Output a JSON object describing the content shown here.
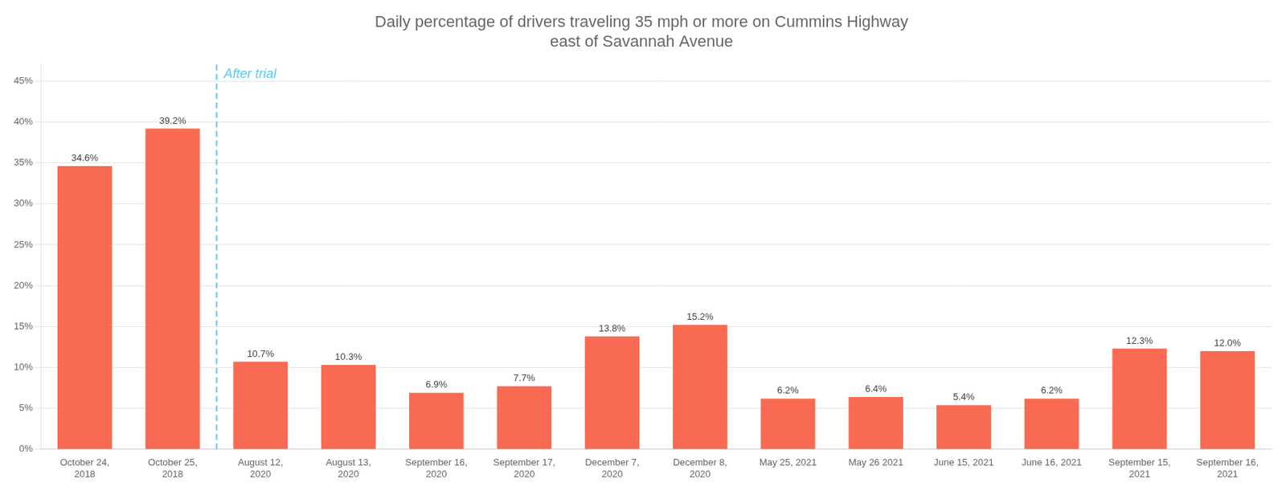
{
  "chart_data": {
    "type": "bar",
    "title": "Daily percentage of drivers traveling 35 mph or more on Cummins Highway\neast of Savannah Avenue",
    "categories": [
      "October 24,\n2018",
      "October 25,\n2018",
      "August 12,\n2020",
      "August 13,\n2020",
      "September 16,\n2020",
      "September 17,\n2020",
      "December 7,\n2020",
      "December 8,\n2020",
      "May 25, 2021",
      "May 26 2021",
      "June 15, 2021",
      "June 16, 2021",
      "September 15,\n2021",
      "September 16,\n2021"
    ],
    "values": [
      34.6,
      39.2,
      10.7,
      10.3,
      6.9,
      7.7,
      13.8,
      15.2,
      6.2,
      6.4,
      5.4,
      6.2,
      12.3,
      12.0
    ],
    "value_labels": [
      "34.6%",
      "39.2%",
      "10.7%",
      "10.3%",
      "6.9%",
      "7.7%",
      "13.8%",
      "15.2%",
      "6.2%",
      "6.4%",
      "5.4%",
      "6.2%",
      "12.3%",
      "12.0%"
    ],
    "data_labels": true,
    "color": "#F96A52",
    "ylim": [
      0,
      47
    ],
    "yticks": [
      {
        "value": 0,
        "label": "0%"
      },
      {
        "value": 5,
        "label": "5%"
      },
      {
        "value": 10,
        "label": "10%"
      },
      {
        "value": 15,
        "label": "15%"
      },
      {
        "value": 20,
        "label": "20%"
      },
      {
        "value": 25,
        "label": "25%"
      },
      {
        "value": 30,
        "label": "30%"
      },
      {
        "value": 35,
        "label": "35%"
      },
      {
        "value": 40,
        "label": "40%"
      },
      {
        "value": 45,
        "label": "45%"
      }
    ],
    "grid": true,
    "annotations": [
      {
        "text": "After trial",
        "x": 1.5,
        "color": "#5BC8F5",
        "line_style": "dashed"
      }
    ]
  }
}
